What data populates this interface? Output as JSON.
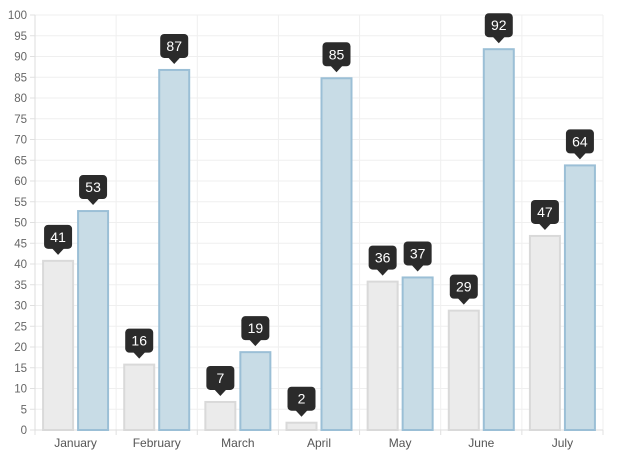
{
  "chart_data": {
    "type": "bar",
    "categories": [
      "January",
      "February",
      "March",
      "April",
      "May",
      "June",
      "July"
    ],
    "series": [
      {
        "values": [
          41,
          16,
          7,
          2,
          36,
          29,
          47
        ],
        "fill": "#ebebeb",
        "stroke": "#d9d9d9"
      },
      {
        "values": [
          53,
          87,
          19,
          85,
          37,
          92,
          64
        ],
        "fill": "#c8dce6",
        "stroke": "#9bbfd6"
      }
    ],
    "ylim": [
      0,
      100
    ],
    "ystep": 5,
    "grid": true,
    "tooltip_color": "#2b2b2b",
    "show_value_tooltips": true
  }
}
